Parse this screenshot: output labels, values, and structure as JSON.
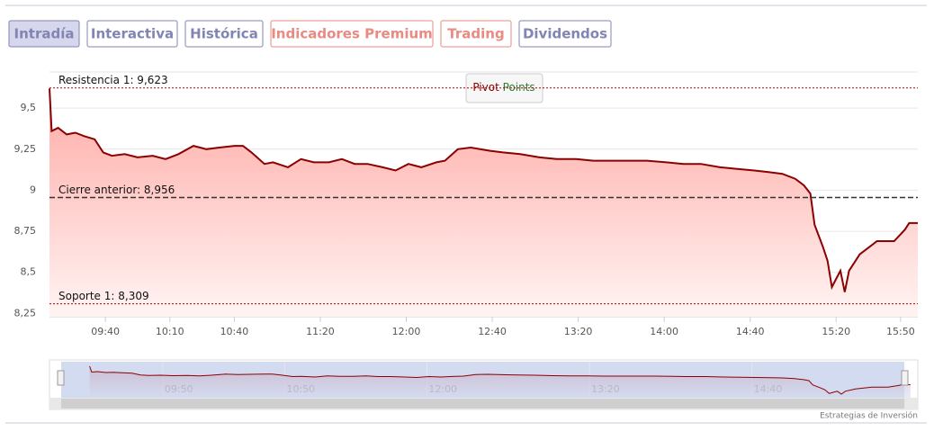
{
  "tabs": [
    "Intradía",
    "Interactiva",
    "Histórica",
    "Indicadores Premium",
    "Trading",
    "Dividendos"
  ],
  "chart_data": {
    "type": "area",
    "x": [
      "09:14",
      "09:15",
      "09:18",
      "09:22",
      "09:26",
      "09:30",
      "09:35",
      "09:39",
      "09:43",
      "09:49",
      "09:55",
      "10:02",
      "10:08",
      "10:14",
      "10:21",
      "10:27",
      "10:33",
      "10:40",
      "10:44",
      "10:48",
      "10:54",
      "10:58",
      "11:05",
      "11:11",
      "11:17",
      "11:24",
      "11:30",
      "11:36",
      "11:42",
      "11:49",
      "11:55",
      "12:01",
      "12:07",
      "12:14",
      "12:18",
      "12:24",
      "12:30",
      "12:39",
      "12:45",
      "12:53",
      "13:02",
      "13:10",
      "13:19",
      "13:27",
      "13:35",
      "13:44",
      "13:52",
      "14:01",
      "14:09",
      "14:17",
      "14:26",
      "14:34",
      "14:42",
      "14:49",
      "14:55",
      "15:01",
      "15:05",
      "15:08",
      "15:10",
      "15:14",
      "15:16",
      "15:18",
      "15:20",
      "15:22",
      "15:24",
      "15:26",
      "15:31",
      "15:35",
      "15:39",
      "15:43",
      "15:47",
      "15:52",
      "15:54",
      "15:58"
    ],
    "series": [
      {
        "color": "#8b0000",
        "values": [
          9.62,
          9.36,
          9.38,
          9.34,
          9.35,
          9.33,
          9.31,
          9.23,
          9.21,
          9.22,
          9.2,
          9.21,
          9.19,
          9.22,
          9.27,
          9.25,
          9.26,
          9.27,
          9.27,
          9.23,
          9.16,
          9.17,
          9.14,
          9.19,
          9.17,
          9.17,
          9.19,
          9.16,
          9.16,
          9.14,
          9.12,
          9.16,
          9.14,
          9.17,
          9.18,
          9.25,
          9.26,
          9.24,
          9.23,
          9.22,
          9.2,
          9.19,
          9.19,
          9.18,
          9.18,
          9.18,
          9.18,
          9.17,
          9.16,
          9.16,
          9.14,
          9.13,
          9.12,
          9.11,
          9.1,
          9.07,
          9.03,
          8.98,
          8.79,
          8.65,
          8.57,
          8.41,
          8.46,
          8.51,
          8.38,
          8.51,
          8.61,
          8.65,
          8.69,
          8.69,
          8.69,
          8.76,
          8.8,
          8.8
        ]
      }
    ],
    "xlim": [
      "09:14",
      "15:58"
    ],
    "xticks": [
      "09:40",
      "10:10",
      "10:40",
      "11:20",
      "12:00",
      "12:40",
      "13:20",
      "14:00",
      "14:40",
      "15:20",
      "15:50"
    ],
    "ylim": [
      8.23,
      9.72
    ],
    "yticks": [
      {
        "value": 8.25,
        "label": "8,25"
      },
      {
        "value": 8.5,
        "label": "8,5"
      },
      {
        "value": 8.75,
        "label": "8,75"
      },
      9,
      {
        "value": 9.25,
        "label": "9,25"
      },
      {
        "value": 9.5,
        "label": "9,5"
      }
    ],
    "grid": true,
    "annotations": [
      {
        "label": "Resistencia 1: 9,623",
        "value": 9.623,
        "color": "#b00000"
      },
      {
        "label": "Cierre anterior: 8,956",
        "value": 8.956,
        "color": "#333333"
      },
      {
        "label": "Soporte 1: 8,309",
        "value": 8.309,
        "color": "#b00000"
      }
    ]
  },
  "pivot_button": {
    "word1": "Pivot",
    "word2": "Points"
  },
  "navigator": {
    "xlim": [
      "09:00",
      "15:55"
    ],
    "ylim": [
      8.3,
      9.7
    ],
    "xticks": [
      "09:50",
      "10:50",
      "12:00",
      "13:20",
      "14:40"
    ]
  },
  "credit": "Estrategias de Inversión"
}
